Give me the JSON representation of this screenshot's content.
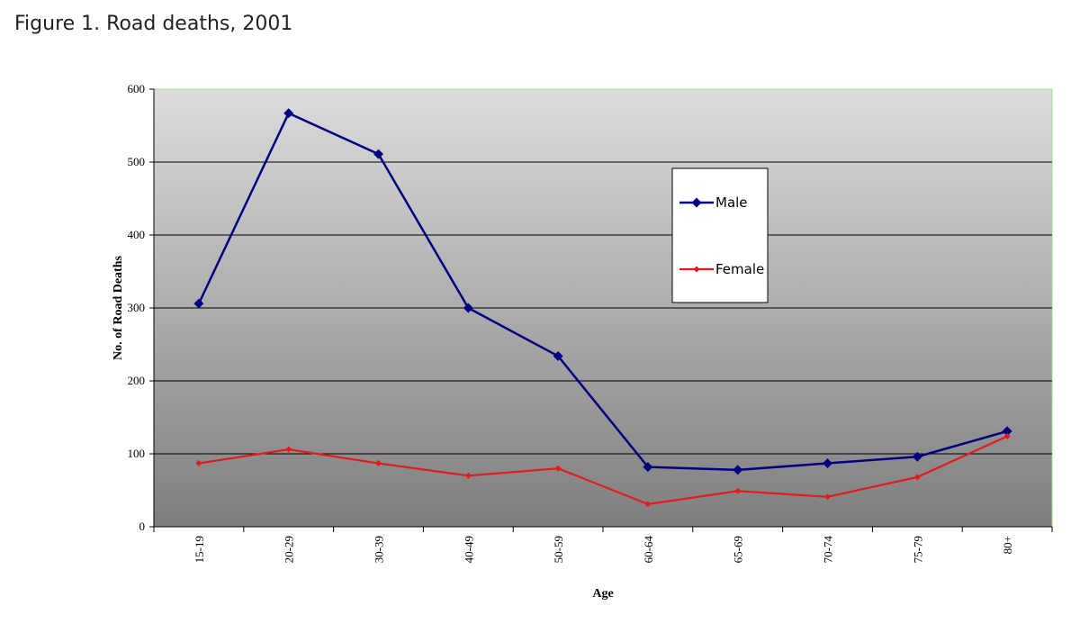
{
  "figure_title": "Figure 1. Road deaths, 2001",
  "chart_data": {
    "type": "line",
    "categories": [
      "15-19",
      "20-29",
      "30-39",
      "40-49",
      "50-59",
      "60-64",
      "65-69",
      "70-74",
      "75-79",
      "80+"
    ],
    "series": [
      {
        "name": "Male",
        "values": [
          306,
          567,
          511,
          300,
          234,
          82,
          78,
          87,
          96,
          131
        ],
        "color": "#000080",
        "marker": "diamond"
      },
      {
        "name": "Female",
        "values": [
          87,
          106,
          87,
          70,
          80,
          31,
          49,
          41,
          68,
          124
        ],
        "color": "#e31a1c",
        "marker": "small-diamond"
      }
    ],
    "xlabel": "Age",
    "ylabel": "No. of Road Deaths",
    "ylim": [
      0,
      600
    ],
    "yticks": [
      0,
      100,
      200,
      300,
      400,
      500,
      600
    ],
    "grid": "horizontal",
    "legend_position": "upper-right-inside",
    "background": "gradient light-gray to dark-gray"
  }
}
